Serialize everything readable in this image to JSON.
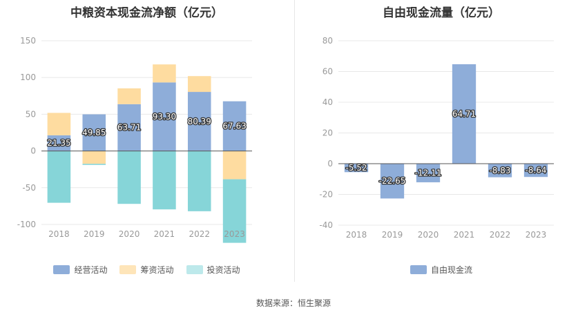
{
  "colors": {
    "operating": "#8eadd9",
    "financing": "#fedca0",
    "investing": "#86d5d8",
    "fcf": "#8eadd9",
    "grid": "#e8e8e8",
    "zero_line": "#555555"
  },
  "source_text": "数据来源：恒生聚源",
  "chart_data": [
    {
      "type": "bar",
      "stacked": true,
      "title": "中粮资本现金流净额（亿元）",
      "categories": [
        "2018",
        "2019",
        "2020",
        "2021",
        "2022",
        "2023"
      ],
      "ylim": [
        -100,
        150
      ],
      "yticks": [
        -100,
        -50,
        0,
        50,
        100,
        150
      ],
      "grid": true,
      "legend_position": "bottom",
      "series": [
        {
          "name": "经营活动",
          "key": "operating",
          "values": [
            21.35,
            49.85,
            63.71,
            93.3,
            80.39,
            67.63
          ],
          "labels": [
            "21.35",
            "49.85",
            "63.71",
            "93.30",
            "80.39",
            "67.63"
          ]
        },
        {
          "name": "筹资活动",
          "key": "financing",
          "values": [
            30.5,
            -17.5,
            21.5,
            24.5,
            21.5,
            -38.5
          ]
        },
        {
          "name": "投资活动",
          "key": "investing",
          "values": [
            -70.5,
            -1.5,
            -72.0,
            -79.5,
            -82.0,
            -86.5
          ]
        }
      ]
    },
    {
      "type": "bar",
      "title": "自由现金流量（亿元）",
      "categories": [
        "2018",
        "2019",
        "2020",
        "2021",
        "2022",
        "2023"
      ],
      "ylim": [
        -40,
        80
      ],
      "yticks": [
        -40,
        -20,
        0,
        20,
        40,
        60,
        80
      ],
      "grid": true,
      "legend_position": "bottom",
      "series": [
        {
          "name": "自由现金流",
          "key": "fcf",
          "values": [
            -5.52,
            -22.65,
            -12.11,
            64.71,
            -8.83,
            -8.64
          ],
          "labels": [
            "-5.52",
            "-22.65",
            "-12.11",
            "64.71",
            "-8.83",
            "-8.64"
          ]
        }
      ]
    }
  ]
}
